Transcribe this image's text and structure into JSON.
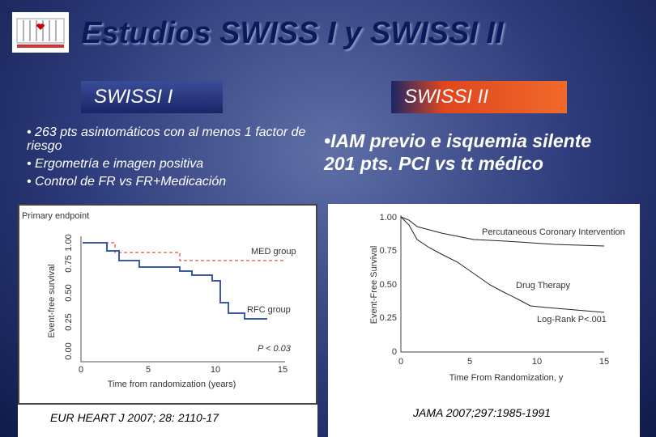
{
  "header": {
    "title": "Estudios SWISS I y SWISSI II"
  },
  "left": {
    "label": "SWISSI I",
    "bullets": [
      "263 pts asintomáticos con al menos 1 factor de riesgo",
      "Ergometría e imagen positiva",
      "Control de FR vs FR+Medicación"
    ],
    "figure": {
      "caption": "Primary endpoint",
      "ylabel": "Event-free survival",
      "xlabel": "Time from randomization (years)",
      "yticks": [
        "0.00",
        "0.25",
        "0.50",
        "0.75",
        "1.00"
      ],
      "xticks": [
        "0",
        "5",
        "10",
        "15"
      ],
      "annotations": [
        "MED group",
        "RFC group",
        "P < 0.03"
      ]
    },
    "citation": "EUR HEART J 2007; 28: 2110-17"
  },
  "right": {
    "label": "SWISSI II",
    "bullets": [
      "IAM previo e isquemia silente  201 pts. PCI vs tt médico"
    ],
    "figure": {
      "ylabel": "Event-Free Survival",
      "xlabel": "Time From Randomization, y",
      "yticks": [
        "1.00",
        "0.75",
        "0.50",
        "0.25",
        "0"
      ],
      "xticks": [
        "0",
        "5",
        "10",
        "15"
      ],
      "annotations": [
        "Percutaneous Coronary Intervention",
        "Drug Therapy",
        "Log-Rank P<.001"
      ]
    },
    "citation": "JAMA 2007;297:1985-1991"
  }
}
